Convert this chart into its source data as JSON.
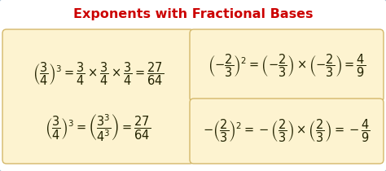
{
  "title": "Exponents with Fractional Bases",
  "title_color": "#cc0000",
  "title_fontsize": 11.5,
  "bg_color": "#f5f5f5",
  "box_color": "#fdf3d0",
  "box_edge_color": "#d4b86a",
  "outer_edge_color": "#a0b8cc",
  "text_color": "#222200",
  "formula_fontsize": 10.5,
  "fig_w": 4.74,
  "fig_h": 2.1,
  "dpi": 100
}
